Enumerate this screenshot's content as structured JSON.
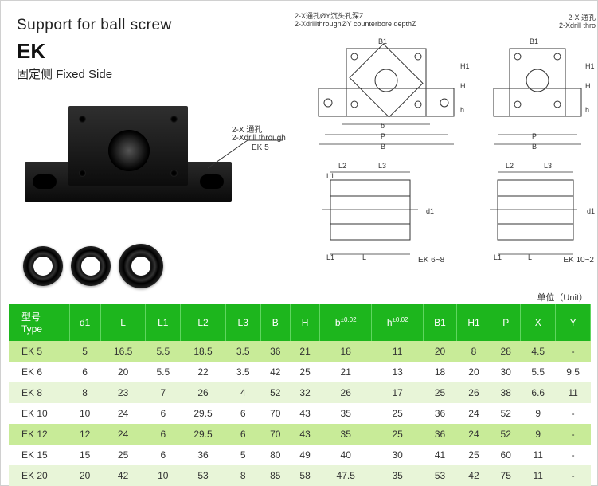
{
  "header": {
    "title": "Support for ball screw",
    "model": "EK",
    "subtitle_cn": "固定侧",
    "subtitle_en": "Fixed Side"
  },
  "annotations": {
    "drill_through_cn": "2-X 通孔",
    "drill_through_en": "2-Xdrill through",
    "counter_bore_cn": "2-X通孔ØY沉头孔深Z",
    "counter_bore_en": "2-XdrillthroughØY counterbore depthZ",
    "side_label_cn": "2-X 通孔",
    "side_label_en": "2-Xdrill thro",
    "ek5": "EK 5",
    "ek68": "EK 6~8",
    "ek102": "EK 10~2",
    "unit": "单位（Unit）"
  },
  "diagrams": {
    "dims": {
      "B": "B",
      "B1": "B1",
      "P": "P",
      "b": "b",
      "H": "H",
      "H1": "H1",
      "h": "h",
      "L": "L",
      "L1": "L1",
      "L2": "L2",
      "L3": "L3",
      "d1": "d1"
    }
  },
  "table": {
    "header_cn": "型号",
    "header_en": "Type",
    "columns": [
      "d1",
      "L",
      "L1",
      "L2",
      "L3",
      "B",
      "H",
      "b",
      "h",
      "B1",
      "H1",
      "P",
      "X",
      "Y"
    ],
    "tol_cols": {
      "b": "±0.02",
      "h": "±0.02"
    },
    "rows": [
      {
        "type": "EK 5",
        "class": "dark",
        "cells": [
          "5",
          "16.5",
          "5.5",
          "18.5",
          "3.5",
          "36",
          "21",
          "18",
          "11",
          "20",
          "8",
          "28",
          "4.5",
          "-"
        ]
      },
      {
        "type": "EK 6",
        "class": "white",
        "cells": [
          "6",
          "20",
          "5.5",
          "22",
          "3.5",
          "42",
          "25",
          "21",
          "13",
          "18",
          "20",
          "30",
          "5.5",
          "9.5"
        ]
      },
      {
        "type": "EK 8",
        "class": "pale",
        "cells": [
          "8",
          "23",
          "7",
          "26",
          "4",
          "52",
          "32",
          "26",
          "17",
          "25",
          "26",
          "38",
          "6.6",
          "11"
        ]
      },
      {
        "type": "EK 10",
        "class": "white",
        "cells": [
          "10",
          "24",
          "6",
          "29.5",
          "6",
          "70",
          "43",
          "35",
          "25",
          "36",
          "24",
          "52",
          "9",
          "-"
        ]
      },
      {
        "type": "EK 12",
        "class": "dark",
        "cells": [
          "12",
          "24",
          "6",
          "29.5",
          "6",
          "70",
          "43",
          "35",
          "25",
          "36",
          "24",
          "52",
          "9",
          "-"
        ]
      },
      {
        "type": "EK 15",
        "class": "white",
        "cells": [
          "15",
          "25",
          "6",
          "36",
          "5",
          "80",
          "49",
          "40",
          "30",
          "41",
          "25",
          "60",
          "11",
          "-"
        ]
      },
      {
        "type": "EK 20",
        "class": "pale",
        "cells": [
          "20",
          "42",
          "10",
          "53",
          "8",
          "85",
          "58",
          "47.5",
          "35",
          "53",
          "42",
          "75",
          "11",
          "-"
        ]
      }
    ]
  },
  "colors": {
    "header_bg": "#1db61d",
    "row_dark": "#c8eb98",
    "row_pale": "#e8f5d8"
  }
}
